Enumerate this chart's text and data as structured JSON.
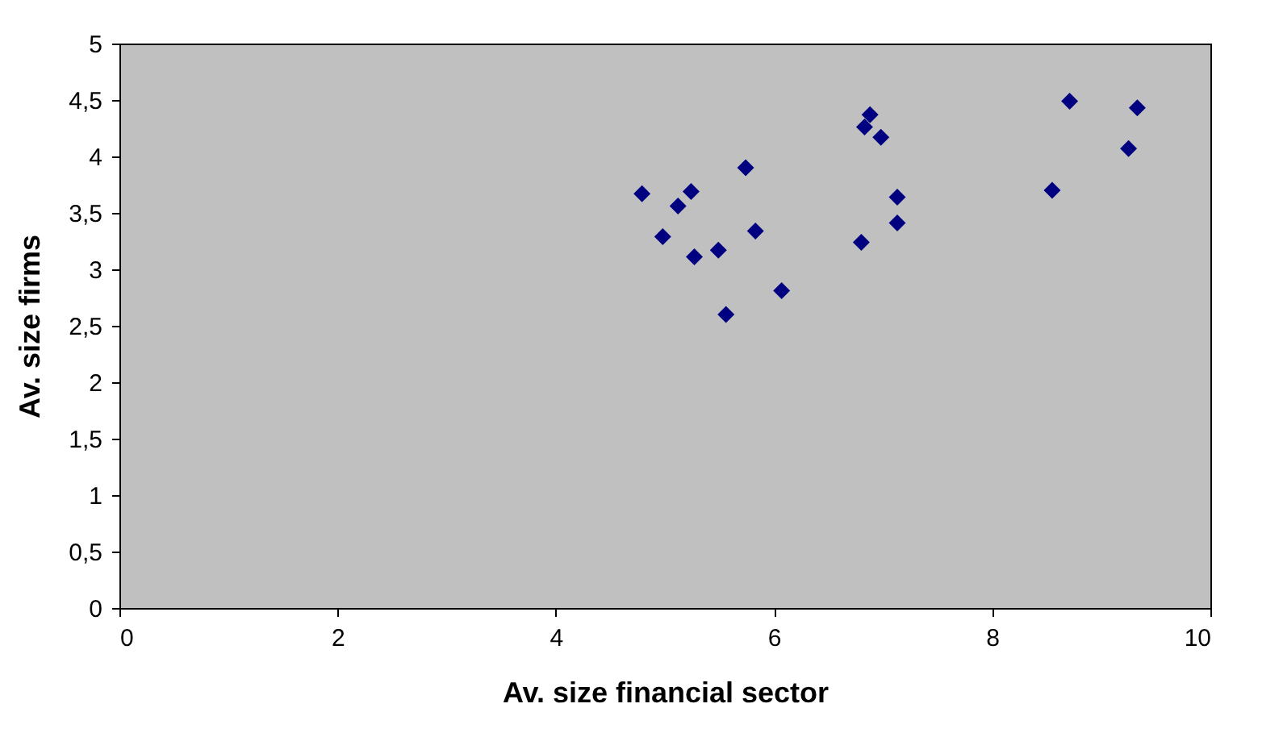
{
  "chart_data": {
    "type": "scatter",
    "xlabel": "Av. size financial sector",
    "ylabel": "Av. size firms",
    "marker": "diamond",
    "grid": false,
    "legend": false,
    "x": [
      4.79,
      4.98,
      5.12,
      5.24,
      5.27,
      5.49,
      5.56,
      5.74,
      5.83,
      6.07,
      6.8,
      6.83,
      6.88,
      6.98,
      7.13,
      7.13,
      8.55,
      8.71,
      9.25,
      9.33
    ],
    "series": [
      {
        "color": "#000080",
        "values": [
          3.67,
          3.29,
          3.56,
          3.69,
          3.11,
          3.17,
          2.6,
          3.9,
          3.34,
          2.81,
          3.24,
          4.26,
          4.37,
          4.17,
          3.64,
          3.41,
          3.7,
          4.49,
          4.07,
          4.43
        ]
      }
    ],
    "xlim": [
      0,
      10
    ],
    "xticks": [
      0,
      2,
      4,
      6,
      8,
      10
    ],
    "ylim": [
      0,
      5
    ],
    "yticks": [
      0,
      {
        "value": 0.5,
        "label": "0,5"
      },
      1,
      {
        "value": 1.5,
        "label": "1,5"
      },
      2,
      {
        "value": 2.5,
        "label": "2,5"
      },
      3,
      {
        "value": 3.5,
        "label": "3,5"
      },
      4,
      {
        "value": 4.5,
        "label": "4,5"
      },
      5
    ]
  }
}
